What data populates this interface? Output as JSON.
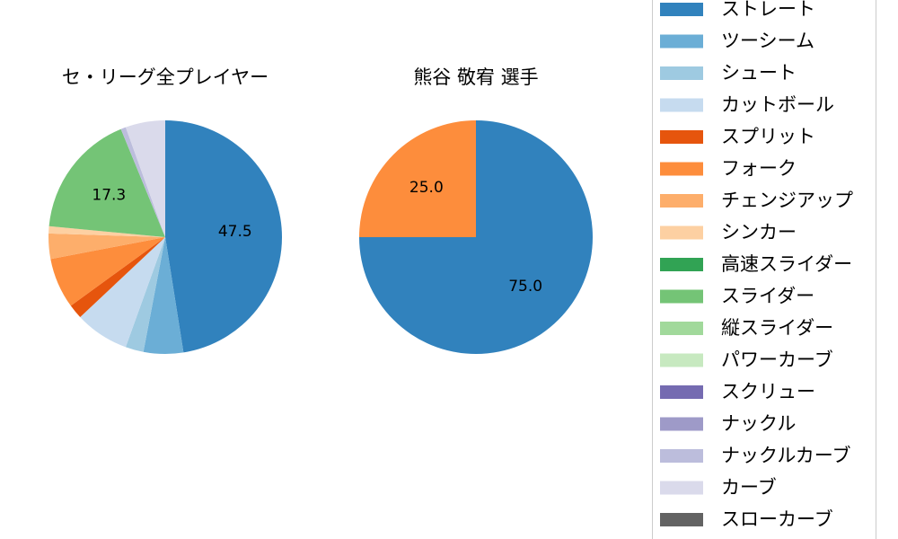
{
  "chart_data": [
    {
      "type": "pie",
      "title": "セ・リーグ全プレイヤー",
      "slices": [
        {
          "label": "ストレート",
          "value": 47.5,
          "color": "#3182bd",
          "show_label": true
        },
        {
          "label": "ツーシーム",
          "value": 5.5,
          "color": "#6baed6",
          "show_label": false
        },
        {
          "label": "シュート",
          "value": 2.5,
          "color": "#9ecae1",
          "show_label": false
        },
        {
          "label": "カットボール",
          "value": 7.5,
          "color": "#c6dbef",
          "show_label": false
        },
        {
          "label": "スプリット",
          "value": 2.0,
          "color": "#e6550d",
          "show_label": false
        },
        {
          "label": "フォーク",
          "value": 7.0,
          "color": "#fd8d3c",
          "show_label": false
        },
        {
          "label": "チェンジアップ",
          "value": 3.5,
          "color": "#fdae6b",
          "show_label": false
        },
        {
          "label": "シンカー",
          "value": 1.0,
          "color": "#fdd0a2",
          "show_label": false
        },
        {
          "label": "スライダー",
          "value": 17.3,
          "color": "#74c476",
          "show_label": true
        },
        {
          "label": "ナックルカーブ",
          "value": 0.7,
          "color": "#bcbddc",
          "show_label": false
        },
        {
          "label": "カーブ",
          "value": 5.5,
          "color": "#dadaeb",
          "show_label": false
        }
      ]
    },
    {
      "type": "pie",
      "title": "熊谷 敬宥  選手",
      "slices": [
        {
          "label": "ストレート",
          "value": 75.0,
          "color": "#3182bd",
          "show_label": true
        },
        {
          "label": "フォーク",
          "value": 25.0,
          "color": "#fd8d3c",
          "show_label": true
        }
      ]
    }
  ],
  "legend": {
    "items": [
      {
        "label": "ストレート",
        "color": "#3182bd"
      },
      {
        "label": "ツーシーム",
        "color": "#6baed6"
      },
      {
        "label": "シュート",
        "color": "#9ecae1"
      },
      {
        "label": "カットボール",
        "color": "#c6dbef"
      },
      {
        "label": "スプリット",
        "color": "#e6550d"
      },
      {
        "label": "フォーク",
        "color": "#fd8d3c"
      },
      {
        "label": "チェンジアップ",
        "color": "#fdae6b"
      },
      {
        "label": "シンカー",
        "color": "#fdd0a2"
      },
      {
        "label": "高速スライダー",
        "color": "#31a354"
      },
      {
        "label": "スライダー",
        "color": "#74c476"
      },
      {
        "label": "縦スライダー",
        "color": "#a1d99b"
      },
      {
        "label": "パワーカーブ",
        "color": "#c7e9c0"
      },
      {
        "label": "スクリュー",
        "color": "#756bb1"
      },
      {
        "label": "ナックル",
        "color": "#9e9ac8"
      },
      {
        "label": "ナックルカーブ",
        "color": "#bcbddc"
      },
      {
        "label": "カーブ",
        "color": "#dadaeb"
      },
      {
        "label": "スローカーブ",
        "color": "#636363"
      }
    ]
  }
}
